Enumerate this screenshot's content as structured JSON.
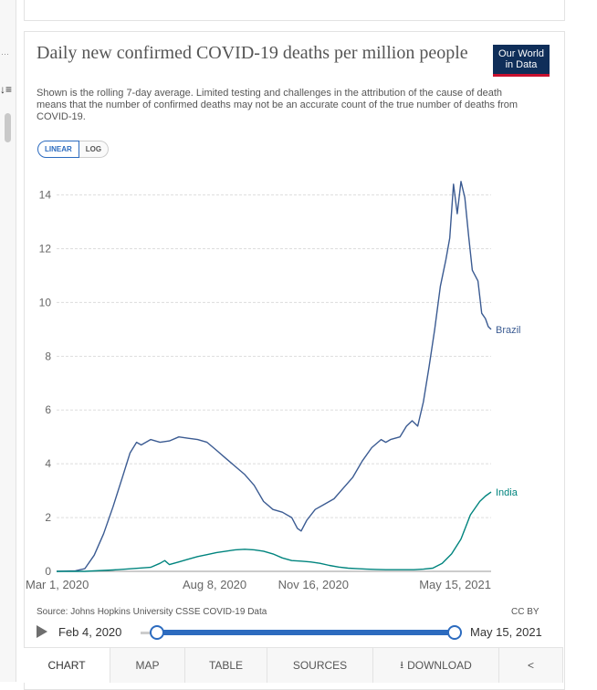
{
  "header": {
    "title": "Daily new confirmed COVID-19 deaths per million people",
    "subtitle": "Shown is the rolling 7-day average. Limited testing and challenges in the attribution of the cause of death means that the number of confirmed deaths may not be an accurate count of the true number of deaths from COVID-19.",
    "logo_text": "Our World in Data"
  },
  "scale_toggle": {
    "linear": "LINEAR",
    "log": "LOG",
    "selected": "LINEAR"
  },
  "chart_data": {
    "type": "line",
    "title": "Daily new confirmed COVID-19 deaths per million people",
    "xlabel": "",
    "ylabel": "",
    "ylim": [
      0,
      14.8
    ],
    "yticks": [
      0,
      2,
      4,
      6,
      8,
      10,
      12,
      14
    ],
    "x_domain_days": [
      0,
      440
    ],
    "xticks": [
      {
        "day": 0,
        "label": "Mar 1, 2020"
      },
      {
        "day": 160,
        "label": "Aug 8, 2020"
      },
      {
        "day": 260,
        "label": "Nov 16, 2020"
      },
      {
        "day": 440,
        "label": "May 15, 2021"
      }
    ],
    "grid": "horizontal-dashed",
    "series": [
      {
        "name": "Brazil",
        "color": "#3b5b92",
        "points": [
          [
            0,
            0
          ],
          [
            20,
            0.02
          ],
          [
            30,
            0.1
          ],
          [
            40,
            0.6
          ],
          [
            50,
            1.4
          ],
          [
            60,
            2.4
          ],
          [
            70,
            3.5
          ],
          [
            78,
            4.4
          ],
          [
            85,
            4.8
          ],
          [
            90,
            4.7
          ],
          [
            100,
            4.9
          ],
          [
            110,
            4.8
          ],
          [
            120,
            4.85
          ],
          [
            130,
            5.0
          ],
          [
            140,
            4.95
          ],
          [
            150,
            4.9
          ],
          [
            160,
            4.8
          ],
          [
            170,
            4.5
          ],
          [
            180,
            4.2
          ],
          [
            190,
            3.9
          ],
          [
            200,
            3.6
          ],
          [
            210,
            3.2
          ],
          [
            220,
            2.6
          ],
          [
            230,
            2.3
          ],
          [
            240,
            2.2
          ],
          [
            250,
            2.0
          ],
          [
            256,
            1.6
          ],
          [
            260,
            1.5
          ],
          [
            266,
            1.9
          ],
          [
            275,
            2.3
          ],
          [
            285,
            2.5
          ],
          [
            295,
            2.7
          ],
          [
            305,
            3.1
          ],
          [
            315,
            3.5
          ],
          [
            325,
            4.1
          ],
          [
            335,
            4.6
          ],
          [
            345,
            4.9
          ],
          [
            350,
            4.8
          ],
          [
            355,
            4.9
          ],
          [
            365,
            5.0
          ],
          [
            372,
            5.4
          ],
          [
            378,
            5.6
          ],
          [
            384,
            5.4
          ],
          [
            390,
            6.3
          ],
          [
            396,
            7.6
          ],
          [
            402,
            9.0
          ],
          [
            408,
            10.6
          ],
          [
            414,
            11.6
          ],
          [
            418,
            12.4
          ],
          [
            422,
            14.4
          ],
          [
            426,
            13.3
          ],
          [
            430,
            14.5
          ],
          [
            434,
            13.9
          ],
          [
            438,
            12.5
          ],
          [
            442,
            11.2
          ],
          [
            448,
            10.8
          ],
          [
            452,
            9.6
          ],
          [
            456,
            9.4
          ],
          [
            459,
            9.1
          ],
          [
            462,
            9.0
          ]
        ]
      },
      {
        "name": "India",
        "color": "#00847e",
        "points": [
          [
            0,
            0
          ],
          [
            30,
            0.0
          ],
          [
            60,
            0.05
          ],
          [
            80,
            0.1
          ],
          [
            100,
            0.15
          ],
          [
            110,
            0.3
          ],
          [
            115,
            0.4
          ],
          [
            120,
            0.25
          ],
          [
            130,
            0.35
          ],
          [
            140,
            0.45
          ],
          [
            150,
            0.55
          ],
          [
            160,
            0.62
          ],
          [
            170,
            0.7
          ],
          [
            180,
            0.75
          ],
          [
            190,
            0.8
          ],
          [
            200,
            0.82
          ],
          [
            210,
            0.8
          ],
          [
            220,
            0.75
          ],
          [
            230,
            0.65
          ],
          [
            240,
            0.5
          ],
          [
            250,
            0.4
          ],
          [
            260,
            0.38
          ],
          [
            270,
            0.35
          ],
          [
            280,
            0.3
          ],
          [
            290,
            0.22
          ],
          [
            300,
            0.16
          ],
          [
            310,
            0.12
          ],
          [
            320,
            0.1
          ],
          [
            330,
            0.08
          ],
          [
            340,
            0.07
          ],
          [
            350,
            0.06
          ],
          [
            360,
            0.06
          ],
          [
            370,
            0.06
          ],
          [
            380,
            0.06
          ],
          [
            390,
            0.08
          ],
          [
            400,
            0.12
          ],
          [
            410,
            0.3
          ],
          [
            420,
            0.65
          ],
          [
            430,
            1.2
          ],
          [
            440,
            2.1
          ],
          [
            450,
            2.6
          ],
          [
            456,
            2.8
          ],
          [
            462,
            2.95
          ]
        ]
      }
    ]
  },
  "footer": {
    "source": "Source: Johns Hopkins University CSSE COVID-19 Data",
    "license": "CC BY"
  },
  "timeline": {
    "start_label": "Feb 4, 2020",
    "end_label": "May 15, 2021",
    "start_fraction": 0.0,
    "end_fraction": 1.0
  },
  "tabs": [
    {
      "label": "CHART"
    },
    {
      "label": "MAP"
    },
    {
      "label": "TABLE"
    },
    {
      "label": "SOURCES"
    },
    {
      "label": "DOWNLOAD"
    }
  ],
  "colors": {
    "accent": "#2c6bbf",
    "brazil": "#3b5b92",
    "india": "#00847e",
    "logo_bg": "#0f2e59",
    "logo_accent": "#c8102e"
  }
}
